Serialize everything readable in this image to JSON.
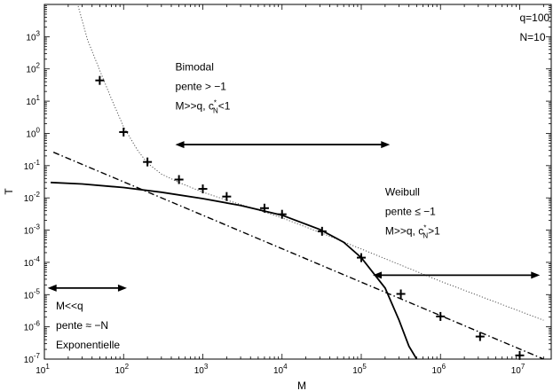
{
  "chart_data": {
    "type": "scatter",
    "xlabel": "M",
    "ylabel": "T",
    "xscale": "log",
    "yscale": "log",
    "xlim": [
      10,
      25000000
    ],
    "ylim": [
      1e-07,
      10000.0
    ],
    "grid": false,
    "x_ticks": [
      {
        "value": 10,
        "base": "10",
        "exp": "1"
      },
      {
        "value": 100,
        "base": "10",
        "exp": "2"
      },
      {
        "value": 1000,
        "base": "10",
        "exp": "3"
      },
      {
        "value": 10000,
        "base": "10",
        "exp": "4"
      },
      {
        "value": 100000,
        "base": "10",
        "exp": "5"
      },
      {
        "value": 1000000,
        "base": "10",
        "exp": "6"
      },
      {
        "value": 10000000,
        "base": "10",
        "exp": "7"
      }
    ],
    "y_ticks": [
      {
        "value": 1e-07,
        "base": "10",
        "exp": "-7"
      },
      {
        "value": 1e-06,
        "base": "10",
        "exp": "-6"
      },
      {
        "value": 1e-05,
        "base": "10",
        "exp": "-5"
      },
      {
        "value": 0.0001,
        "base": "10",
        "exp": "-4"
      },
      {
        "value": 0.001,
        "base": "10",
        "exp": "-3"
      },
      {
        "value": 0.01,
        "base": "10",
        "exp": "-2"
      },
      {
        "value": 0.1,
        "base": "10",
        "exp": "-1"
      },
      {
        "value": 1,
        "base": "10",
        "exp": "0"
      },
      {
        "value": 10,
        "base": "10",
        "exp": "1"
      },
      {
        "value": 100,
        "base": "10",
        "exp": "2"
      },
      {
        "value": 1000,
        "base": "10",
        "exp": "3"
      }
    ],
    "points": [
      {
        "x": 50,
        "y": 44
      },
      {
        "x": 100,
        "y": 1.1
      },
      {
        "x": 200,
        "y": 0.13
      },
      {
        "x": 500,
        "y": 0.037
      },
      {
        "x": 1000,
        "y": 0.019
      },
      {
        "x": 2000,
        "y": 0.011
      },
      {
        "x": 6000,
        "y": 0.0048
      },
      {
        "x": 10000,
        "y": 0.0031
      },
      {
        "x": 32000,
        "y": 0.00092
      },
      {
        "x": 100000,
        "y": 0.00014
      },
      {
        "x": 316000,
        "y": 1.05e-05
      },
      {
        "x": 1000000,
        "y": 2.1e-06
      },
      {
        "x": 3160000,
        "y": 5e-07
      },
      {
        "x": 10000000,
        "y": 1.3e-07
      }
    ],
    "solid_curve": {
      "style": "solid",
      "x": [
        12,
        30,
        100,
        300,
        1000,
        3000,
        10000,
        30000,
        60000,
        100000,
        200000,
        300000,
        400000,
        500000
      ],
      "y": [
        0.03,
        0.027,
        0.021,
        0.015,
        0.0095,
        0.0058,
        0.0029,
        0.00105,
        0.00042,
        0.00014,
        1.6e-05,
        1.6e-06,
        2.5e-07,
        1e-07
      ]
    },
    "dashdot_line": {
      "style": "dash-dot",
      "x": [
        13,
        20000000
      ],
      "y": [
        0.26,
        1e-07
      ]
    },
    "dotted_curve": {
      "style": "dotted",
      "x": [
        25,
        35,
        50,
        70,
        100,
        150,
        200,
        300,
        500,
        1000,
        2000,
        5000,
        10000,
        30000,
        100000,
        1000000,
        20000000
      ],
      "y": [
        16000,
        800,
        90,
        12,
        1.6,
        0.3,
        0.12,
        0.055,
        0.03,
        0.015,
        0.0085,
        0.0042,
        0.0024,
        0.00085,
        0.00026,
        2.6e-05,
        1.6e-06
      ]
    },
    "arrows": [
      {
        "x1": 450,
        "x2": 230000,
        "y": 0.45
      },
      {
        "x1": 11,
        "x2": 110,
        "y": 1.6e-05
      },
      {
        "x1": 140000,
        "x2": 18000000,
        "y": 4e-05
      }
    ],
    "annotations": {
      "params": {
        "x": 10000000,
        "y": 3000,
        "lines": [
          "q=100",
          "N=10"
        ]
      },
      "bimodal": {
        "x": 450,
        "y": 90,
        "title": "Bimodal",
        "pente": "pente > −1",
        "cond_prefix": "M>>q, c",
        "cond_sub": "N",
        "cond_sup": "*",
        "cond_suffix": "<1"
      },
      "weibull": {
        "x": 200000,
        "y": 0.012,
        "title": "Weibull",
        "pente": "pente ≤ −1",
        "cond_prefix": "M>>q, c",
        "cond_sub": "N",
        "cond_sup": "*",
        "cond_suffix": ">1"
      },
      "exponentielle": {
        "x": 14,
        "y": 3.5e-06,
        "lines": [
          "M<<q",
          "pente ≈ −N",
          "Exponentielle"
        ]
      }
    }
  }
}
